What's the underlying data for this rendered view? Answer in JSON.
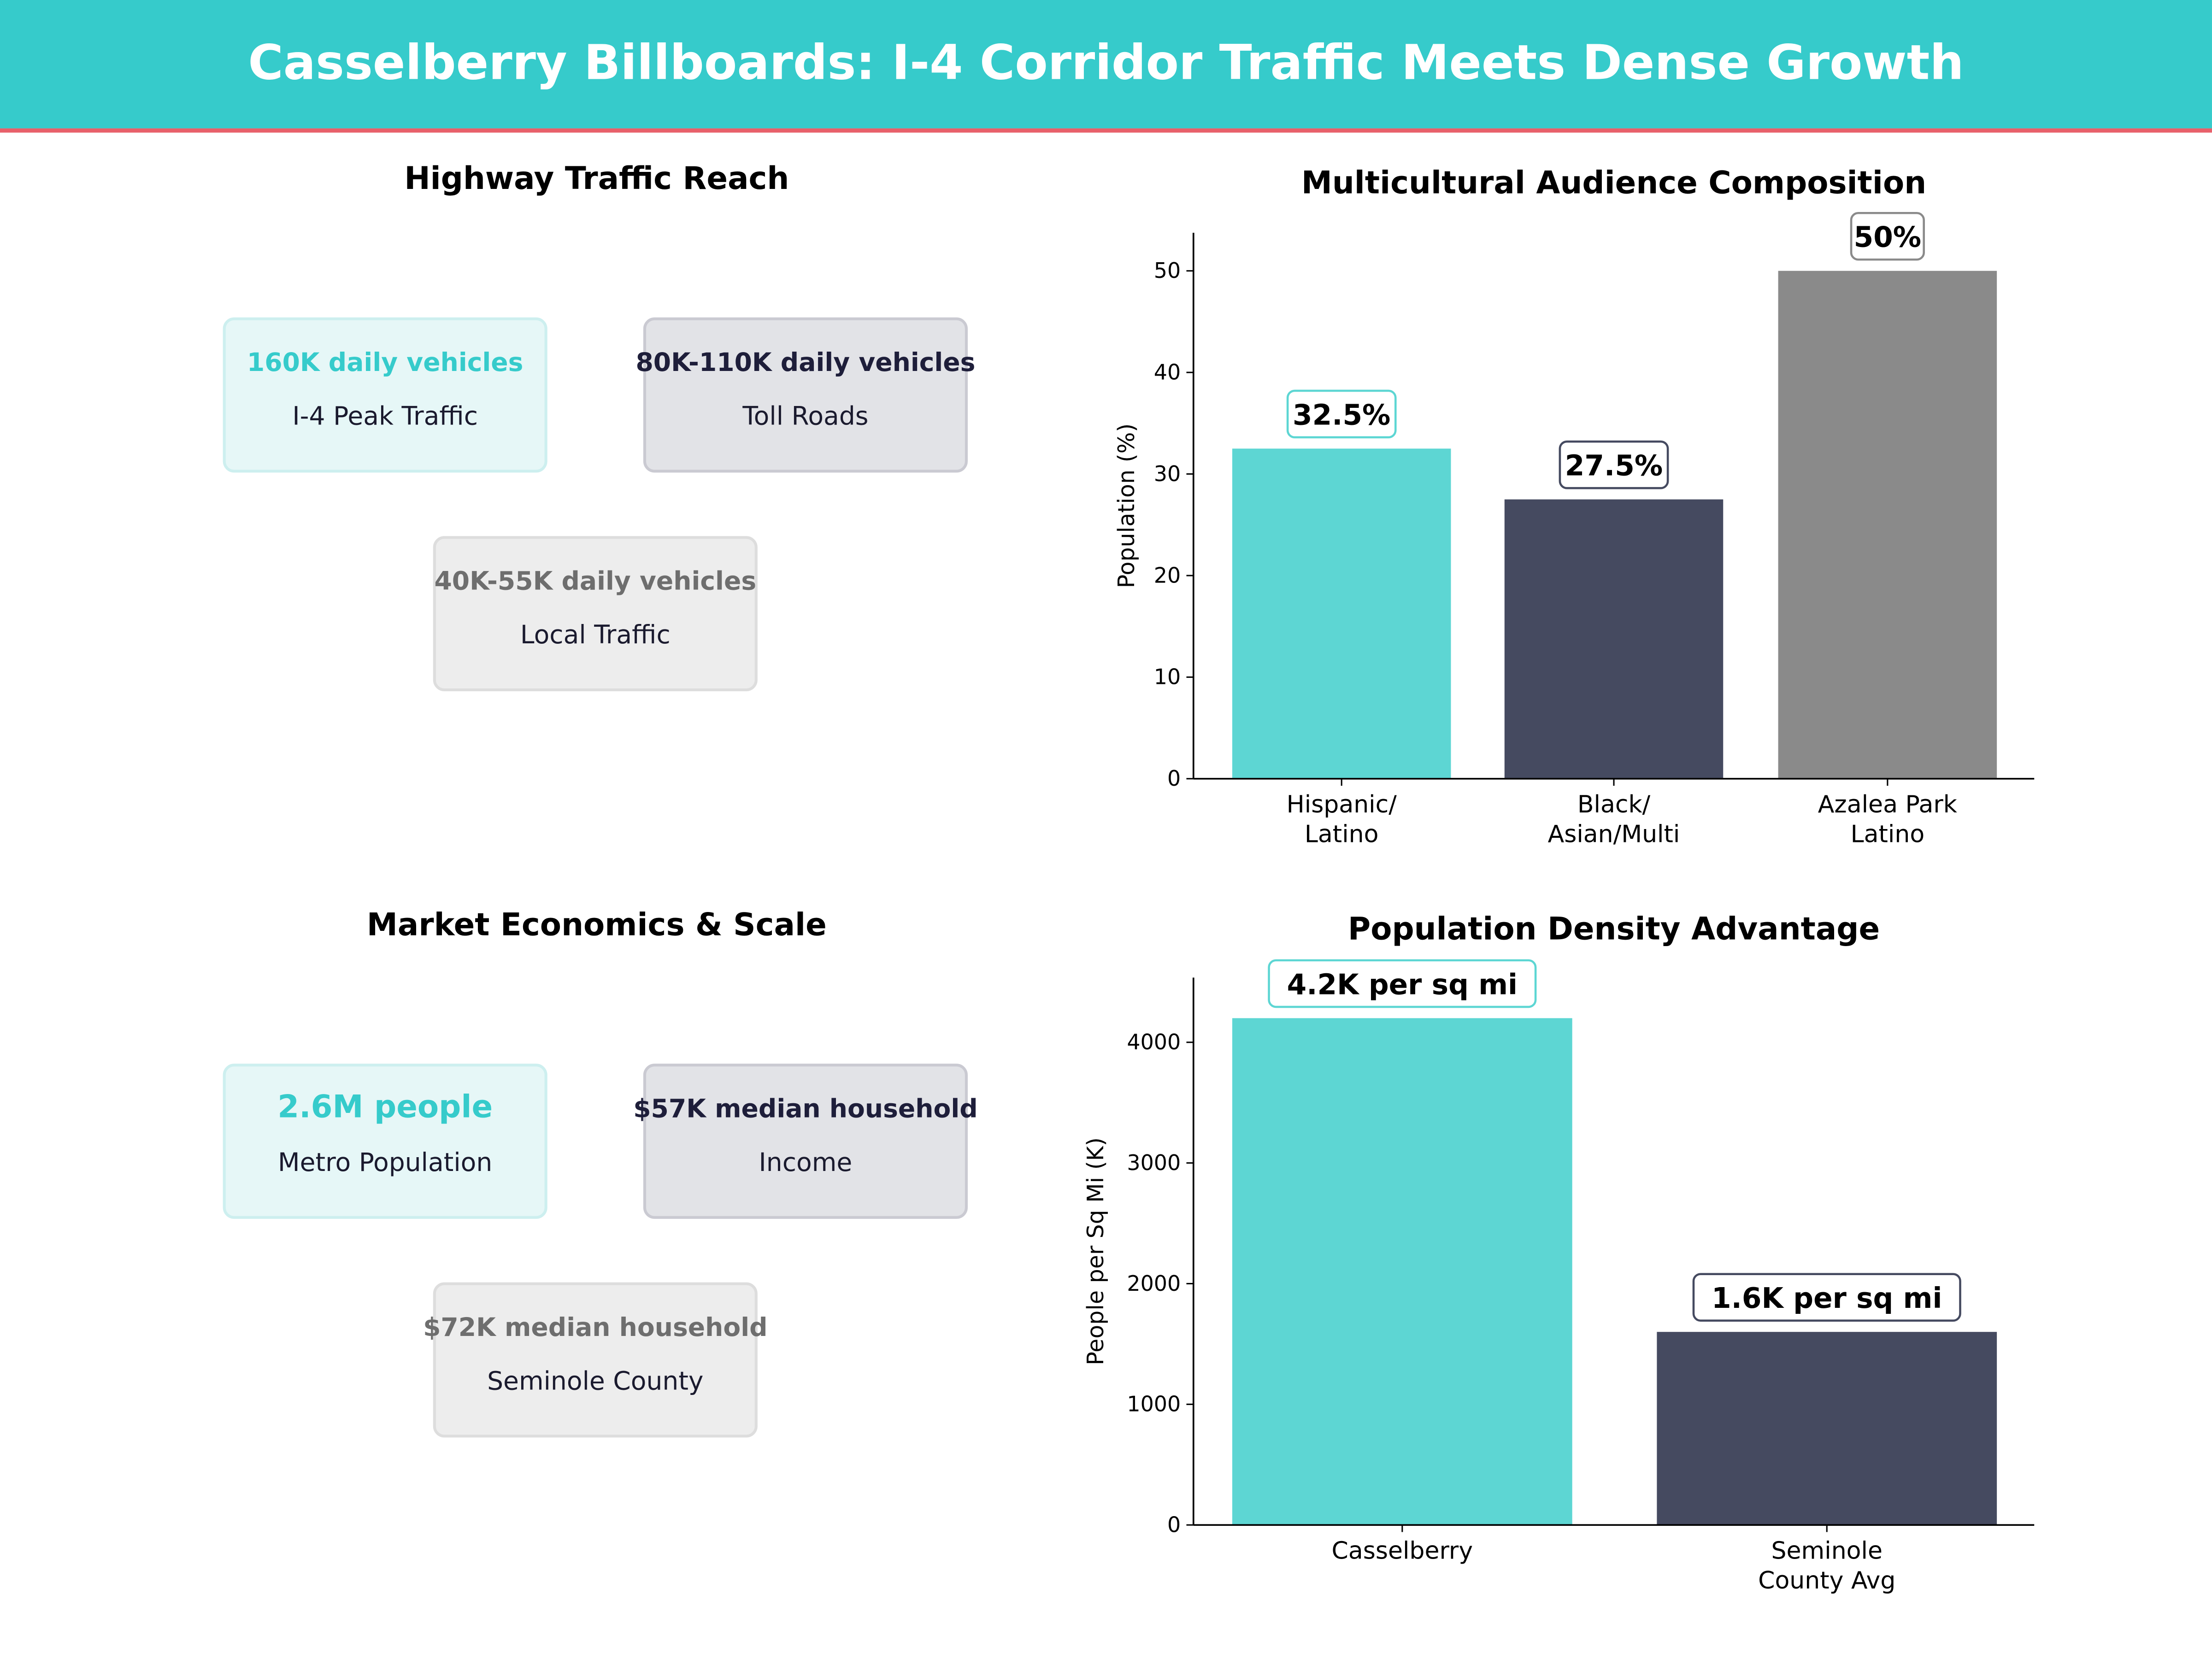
{
  "header": {
    "title": "Casselberry Billboards: I-4 Corridor Traffic Meets Dense Growth",
    "bg": "#36CBCB",
    "accent_line": "#E8606A"
  },
  "traffic": {
    "title": "Highway Traffic Reach",
    "cards": [
      {
        "value": "160K daily vehicles",
        "label": "I-4 Peak Traffic",
        "color": "#36CBCB"
      },
      {
        "value": "80K-110K daily vehicles",
        "label": "Toll Roads",
        "color": "#1E1E3A"
      },
      {
        "value": "40K-55K daily vehicles",
        "label": "Local Traffic",
        "color": "#6E6E6E"
      }
    ]
  },
  "market": {
    "title": "Market Economics & Scale",
    "cards": [
      {
        "value": "2.6M people",
        "label": "Metro Population",
        "color": "#36CBCB"
      },
      {
        "value": "$57K median household",
        "label": "Income",
        "color": "#1E1E3A"
      },
      {
        "value": "$72K median household",
        "label": "Seminole County",
        "color": "#6E6E6E"
      }
    ]
  },
  "chart_data": [
    {
      "type": "bar",
      "title": "Multicultural Audience Composition",
      "ylabel": "Population (%)",
      "xlabel": "",
      "categories": [
        "Hispanic/\nLatino",
        "Black/\nAsian/Multi",
        "Azalea Park\nLatino"
      ],
      "values": [
        32.5,
        27.5,
        50
      ],
      "data_labels": [
        "32.5%",
        "27.5%",
        "50%"
      ],
      "colors": [
        "#5DD6D3",
        "#454A60",
        "#8A8A8A"
      ],
      "ylim": [
        0,
        53.75
      ],
      "yticks": [
        0,
        10,
        20,
        30,
        40,
        50
      ],
      "grid": false
    },
    {
      "type": "bar",
      "title": "Population Density Advantage",
      "ylabel": "People per Sq Mi (K)",
      "xlabel": "",
      "categories": [
        "Casselberry",
        "Seminole\nCounty Avg"
      ],
      "values": [
        4200,
        1600
      ],
      "data_labels": [
        "4.2K per sq mi",
        "1.6K per sq mi"
      ],
      "colors": [
        "#5DD6D3",
        "#454A60"
      ],
      "ylim": [
        0,
        4536
      ],
      "yticks": [
        0,
        1000,
        2000,
        3000,
        4000
      ],
      "grid": false
    }
  ]
}
